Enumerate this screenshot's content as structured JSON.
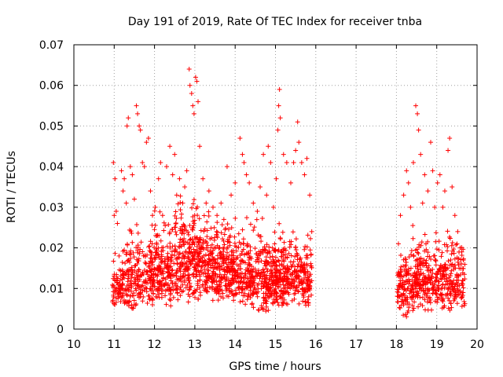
{
  "chart_data": {
    "type": "scatter",
    "title": "Day 191 of 2019, Rate Of TEC Index for receiver tnba",
    "xlabel": "GPS time / hours",
    "ylabel": "ROTI / TECUs",
    "xlim": [
      10,
      20
    ],
    "ylim": [
      0,
      0.07
    ],
    "xticks": [
      10,
      11,
      12,
      13,
      14,
      15,
      16,
      17,
      18,
      19,
      20
    ],
    "xtick_labels": [
      "10",
      "11",
      "12",
      "13",
      "14",
      "15",
      "16",
      "17",
      "18",
      "19",
      "20"
    ],
    "yticks": [
      0,
      0.01,
      0.02,
      0.03,
      0.04,
      0.05,
      0.06,
      0.07
    ],
    "ytick_labels": [
      "0",
      "0.01",
      "0.02",
      "0.03",
      "0.04",
      "0.05",
      "0.06",
      "0.07"
    ],
    "grid": true,
    "marker": "+",
    "color": "#ff0000",
    "series": [
      {
        "name": "ROTI",
        "points": [
          [
            10.98,
            0.041
          ],
          [
            11.0,
            0.028
          ],
          [
            11.02,
            0.037
          ],
          [
            11.05,
            0.029
          ],
          [
            11.08,
            0.026
          ],
          [
            11.12,
            0.018
          ],
          [
            11.18,
            0.039
          ],
          [
            11.22,
            0.034
          ],
          [
            11.25,
            0.037
          ],
          [
            11.3,
            0.031
          ],
          [
            11.32,
            0.05
          ],
          [
            11.35,
            0.052
          ],
          [
            11.4,
            0.04
          ],
          [
            11.45,
            0.038
          ],
          [
            11.5,
            0.032
          ],
          [
            11.55,
            0.055
          ],
          [
            11.58,
            0.053
          ],
          [
            11.62,
            0.05
          ],
          [
            11.65,
            0.049
          ],
          [
            11.7,
            0.041
          ],
          [
            11.75,
            0.04
          ],
          [
            11.8,
            0.046
          ],
          [
            11.85,
            0.047
          ],
          [
            11.9,
            0.034
          ],
          [
            11.95,
            0.028
          ],
          [
            12.02,
            0.03
          ],
          [
            12.1,
            0.037
          ],
          [
            12.15,
            0.041
          ],
          [
            12.2,
            0.028
          ],
          [
            12.3,
            0.04
          ],
          [
            12.38,
            0.045
          ],
          [
            12.45,
            0.038
          ],
          [
            12.5,
            0.043
          ],
          [
            12.55,
            0.033
          ],
          [
            12.62,
            0.037
          ],
          [
            12.7,
            0.031
          ],
          [
            12.75,
            0.035
          ],
          [
            12.8,
            0.039
          ],
          [
            12.86,
            0.064
          ],
          [
            12.88,
            0.06
          ],
          [
            12.92,
            0.058
          ],
          [
            12.95,
            0.055
          ],
          [
            12.98,
            0.053
          ],
          [
            13.02,
            0.062
          ],
          [
            13.05,
            0.061
          ],
          [
            13.08,
            0.056
          ],
          [
            13.12,
            0.045
          ],
          [
            13.2,
            0.037
          ],
          [
            13.28,
            0.031
          ],
          [
            13.35,
            0.034
          ],
          [
            13.45,
            0.03
          ],
          [
            13.55,
            0.028
          ],
          [
            13.65,
            0.031
          ],
          [
            13.72,
            0.027
          ],
          [
            13.8,
            0.04
          ],
          [
            13.9,
            0.033
          ],
          [
            14.0,
            0.036
          ],
          [
            14.12,
            0.047
          ],
          [
            14.18,
            0.043
          ],
          [
            14.22,
            0.041
          ],
          [
            14.28,
            0.038
          ],
          [
            14.35,
            0.036
          ],
          [
            14.45,
            0.031
          ],
          [
            14.55,
            0.029
          ],
          [
            14.62,
            0.035
          ],
          [
            14.7,
            0.043
          ],
          [
            14.78,
            0.033
          ],
          [
            14.82,
            0.045
          ],
          [
            14.88,
            0.041
          ],
          [
            14.95,
            0.03
          ],
          [
            15.02,
            0.037
          ],
          [
            15.06,
            0.049
          ],
          [
            15.08,
            0.055
          ],
          [
            15.1,
            0.059
          ],
          [
            15.12,
            0.052
          ],
          [
            15.2,
            0.043
          ],
          [
            15.28,
            0.041
          ],
          [
            15.38,
            0.036
          ],
          [
            15.45,
            0.041
          ],
          [
            15.5,
            0.044
          ],
          [
            15.55,
            0.051
          ],
          [
            15.58,
            0.046
          ],
          [
            15.65,
            0.041
          ],
          [
            15.72,
            0.038
          ],
          [
            15.78,
            0.042
          ],
          [
            15.85,
            0.033
          ],
          [
            15.9,
            0.024
          ],
          [
            18.05,
            0.021
          ],
          [
            18.1,
            0.028
          ],
          [
            18.18,
            0.033
          ],
          [
            18.25,
            0.039
          ],
          [
            18.3,
            0.036
          ],
          [
            18.35,
            0.03
          ],
          [
            18.42,
            0.041
          ],
          [
            18.48,
            0.055
          ],
          [
            18.52,
            0.053
          ],
          [
            18.55,
            0.049
          ],
          [
            18.6,
            0.043
          ],
          [
            18.65,
            0.031
          ],
          [
            18.7,
            0.038
          ],
          [
            18.78,
            0.034
          ],
          [
            18.85,
            0.046
          ],
          [
            18.9,
            0.039
          ],
          [
            18.95,
            0.03
          ],
          [
            19.02,
            0.036
          ],
          [
            19.08,
            0.038
          ],
          [
            19.15,
            0.03
          ],
          [
            19.2,
            0.034
          ],
          [
            19.28,
            0.044
          ],
          [
            19.32,
            0.047
          ],
          [
            19.38,
            0.035
          ],
          [
            19.45,
            0.028
          ],
          [
            19.52,
            0.024
          ],
          [
            19.58,
            0.02
          ],
          [
            19.62,
            0.019
          ],
          [
            19.66,
            0.017
          ]
        ],
        "bands": [
          {
            "x_start": 10.95,
            "x_end": 11.2,
            "y_min": 0.005,
            "y_max": 0.02,
            "count": 60
          },
          {
            "x_start": 11.2,
            "x_end": 11.9,
            "y_min": 0.004,
            "y_max": 0.027,
            "count": 200
          },
          {
            "x_start": 11.9,
            "x_end": 12.6,
            "y_min": 0.005,
            "y_max": 0.032,
            "count": 260
          },
          {
            "x_start": 12.6,
            "x_end": 13.4,
            "y_min": 0.006,
            "y_max": 0.036,
            "count": 320
          },
          {
            "x_start": 13.4,
            "x_end": 14.4,
            "y_min": 0.006,
            "y_max": 0.03,
            "count": 380
          },
          {
            "x_start": 14.4,
            "x_end": 15.2,
            "y_min": 0.004,
            "y_max": 0.028,
            "count": 320
          },
          {
            "x_start": 15.2,
            "x_end": 15.9,
            "y_min": 0.005,
            "y_max": 0.026,
            "count": 240
          },
          {
            "x_start": 18.02,
            "x_end": 18.4,
            "y_min": 0.003,
            "y_max": 0.022,
            "count": 120
          },
          {
            "x_start": 18.4,
            "x_end": 19.0,
            "y_min": 0.004,
            "y_max": 0.028,
            "count": 200
          },
          {
            "x_start": 19.0,
            "x_end": 19.7,
            "y_min": 0.004,
            "y_max": 0.026,
            "count": 200
          }
        ]
      }
    ]
  }
}
